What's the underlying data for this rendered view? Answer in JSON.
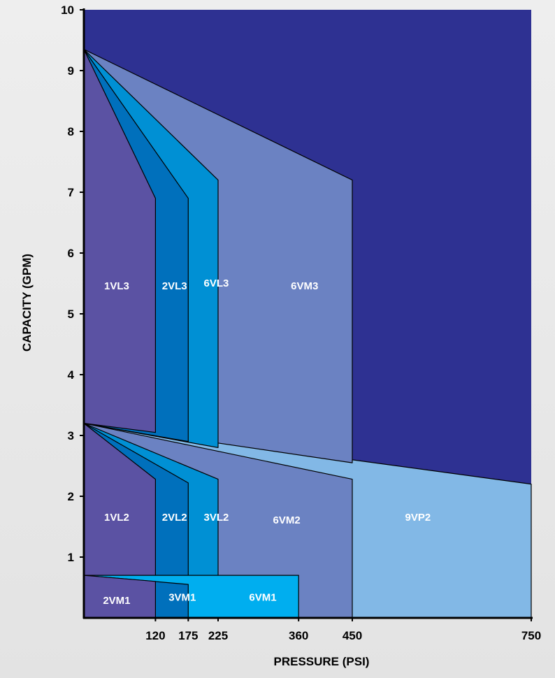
{
  "chart_data": {
    "type": "area",
    "xlabel": "PRESSURE (PSI)",
    "ylabel": "CAPACITY (GPM)",
    "x_ticks": [
      "120",
      "175",
      "225",
      "360",
      "450",
      "750"
    ],
    "y_ticks": [
      "1",
      "2",
      "3",
      "4",
      "5",
      "6",
      "7",
      "8",
      "9",
      "10"
    ],
    "ylim": [
      0,
      10
    ],
    "background_color": "#2e3192",
    "regions": [
      {
        "name": "9VP2",
        "color": "#82b8e6",
        "points": [
          [
            0,
            3.2
          ],
          [
            750,
            2.2
          ],
          [
            750,
            0
          ],
          [
            0,
            0
          ]
        ]
      },
      {
        "name": "6VM3",
        "color": "#6b82c2",
        "points": [
          [
            0,
            9.35
          ],
          [
            450,
            7.2
          ],
          [
            450,
            2.55
          ],
          [
            0,
            3.2
          ]
        ]
      },
      {
        "name": "6VL3",
        "color": "#0090d4",
        "points": [
          [
            0,
            9.35
          ],
          [
            225,
            7.2
          ],
          [
            225,
            2.8
          ],
          [
            0,
            3.2
          ]
        ]
      },
      {
        "name": "2VL3",
        "color": "#0070bc",
        "points": [
          [
            0,
            9.35
          ],
          [
            175,
            6.9
          ],
          [
            175,
            2.9
          ],
          [
            0,
            3.2
          ]
        ]
      },
      {
        "name": "1VL3",
        "color": "#5b52a3",
        "points": [
          [
            0,
            9.35
          ],
          [
            120,
            6.9
          ],
          [
            120,
            3.05
          ],
          [
            0,
            3.2
          ]
        ]
      },
      {
        "name": "6VM2",
        "color": "#6b82c2",
        "points": [
          [
            0,
            3.2
          ],
          [
            450,
            2.28
          ],
          [
            450,
            0
          ],
          [
            0,
            0
          ]
        ]
      },
      {
        "name": "3VL2",
        "color": "#0090d4",
        "points": [
          [
            0,
            3.2
          ],
          [
            225,
            2.28
          ],
          [
            225,
            0
          ],
          [
            0,
            0
          ]
        ]
      },
      {
        "name": "2VL2",
        "color": "#0070bc",
        "points": [
          [
            0,
            3.2
          ],
          [
            175,
            2.22
          ],
          [
            175,
            0
          ],
          [
            0,
            0
          ]
        ]
      },
      {
        "name": "1VL2",
        "color": "#5b52a3",
        "points": [
          [
            0,
            3.2
          ],
          [
            120,
            2.28
          ],
          [
            120,
            0
          ],
          [
            0,
            0
          ]
        ]
      },
      {
        "name": "6VM1",
        "color": "#00aeef",
        "points": [
          [
            0,
            0.7
          ],
          [
            360,
            0.7
          ],
          [
            360,
            0
          ],
          [
            0,
            0
          ]
        ]
      },
      {
        "name": "3VM1",
        "color": "#0070bc",
        "points": [
          [
            0,
            0.7
          ],
          [
            175,
            0.55
          ],
          [
            175,
            0
          ],
          [
            0,
            0
          ]
        ]
      },
      {
        "name": "2VM1",
        "color": "#5b52a3",
        "points": [
          [
            0,
            0.7
          ],
          [
            120,
            0.6
          ],
          [
            120,
            0
          ],
          [
            0,
            0
          ]
        ]
      }
    ],
    "labels": [
      {
        "text": "1VL3",
        "x": 55,
        "y": 5.4
      },
      {
        "text": "2VL3",
        "x": 152,
        "y": 5.4
      },
      {
        "text": "6VL3",
        "x": 222,
        "y": 5.45
      },
      {
        "text": "6VM3",
        "x": 370,
        "y": 5.4
      },
      {
        "text": "1VL2",
        "x": 55,
        "y": 1.6
      },
      {
        "text": "2VL2",
        "x": 152,
        "y": 1.6
      },
      {
        "text": "3VL2",
        "x": 222,
        "y": 1.6
      },
      {
        "text": "6VM2",
        "x": 340,
        "y": 1.55
      },
      {
        "text": "9VP2",
        "x": 560,
        "y": 1.6
      },
      {
        "text": "2VM1",
        "x": 55,
        "y": 0.23
      },
      {
        "text": "3VM1",
        "x": 165,
        "y": 0.28
      },
      {
        "text": "6VM1",
        "x": 300,
        "y": 0.28
      }
    ]
  }
}
